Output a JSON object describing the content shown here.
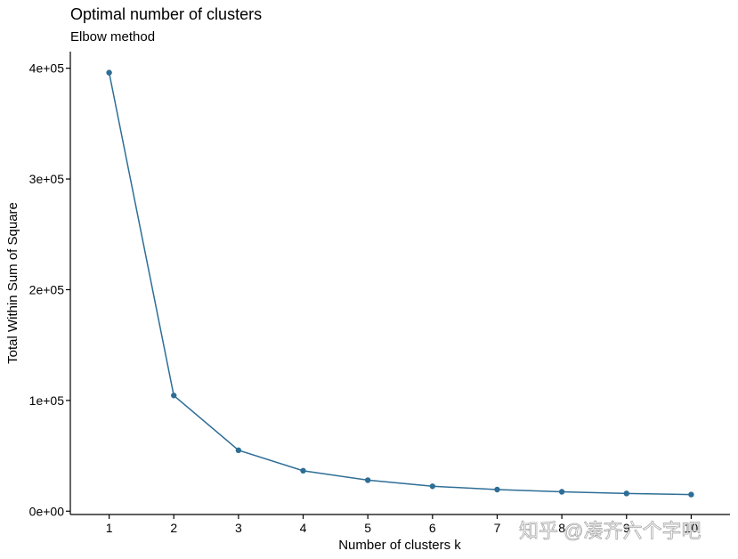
{
  "chart_data": {
    "type": "line",
    "title": "Optimal number of clusters",
    "subtitle": "Elbow method",
    "xlabel": "Number of clusters k",
    "ylabel": "Total Within Sum of Square",
    "x": [
      1,
      2,
      3,
      4,
      5,
      6,
      7,
      8,
      9,
      10
    ],
    "values": [
      396000,
      104500,
      55000,
      36500,
      28000,
      22500,
      19500,
      17500,
      16000,
      15000
    ],
    "xticks": [
      "1",
      "2",
      "3",
      "4",
      "5",
      "6",
      "7",
      "8",
      "9",
      "10"
    ],
    "yticks": [
      {
        "value": 0,
        "label": "0e+00"
      },
      {
        "value": 100000,
        "label": "1e+05"
      },
      {
        "value": 200000,
        "label": "2e+05"
      },
      {
        "value": 300000,
        "label": "3e+05"
      },
      {
        "value": 400000,
        "label": "4e+05"
      }
    ],
    "ylim": [
      -3000,
      415000
    ],
    "xlim": [
      0.4,
      10.6
    ],
    "grid": false,
    "color": "#2e6e96"
  },
  "watermark": "知乎 @凑齐六个字吧"
}
